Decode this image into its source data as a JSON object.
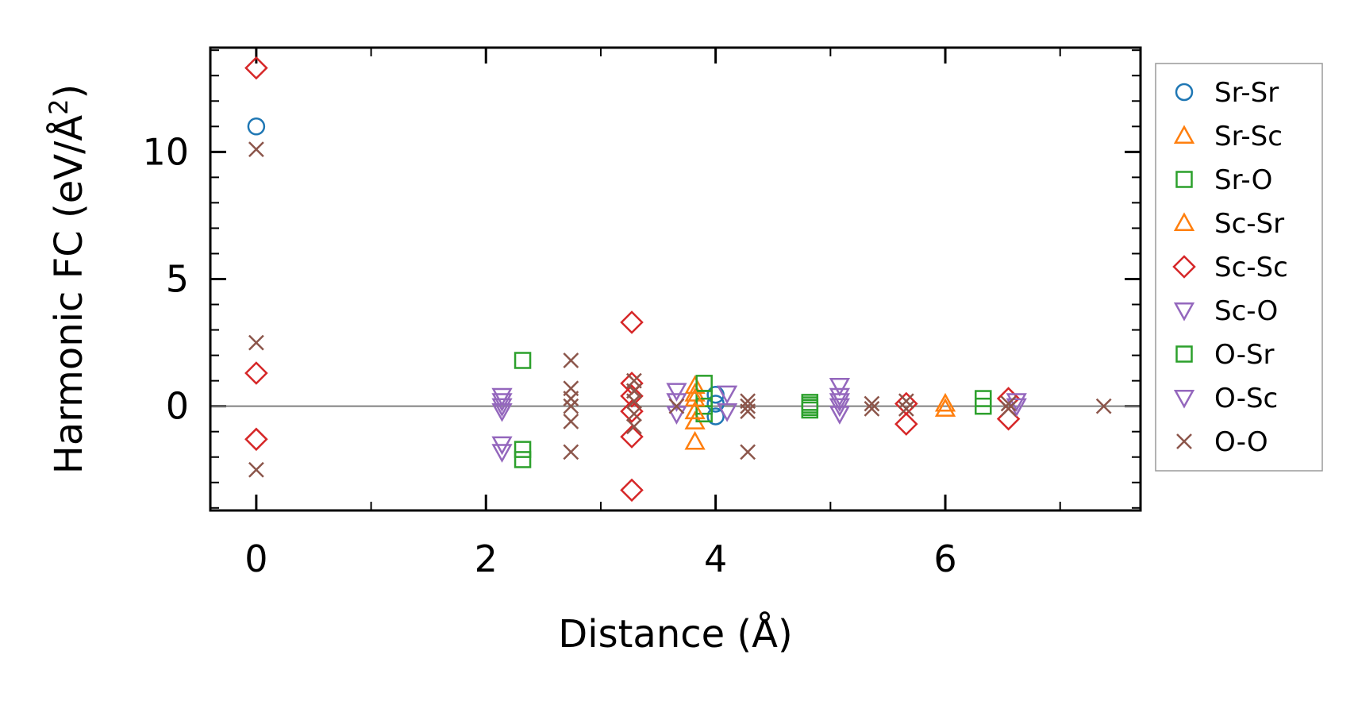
{
  "chart_data": {
    "type": "scatter",
    "title": "",
    "xlabel": "Distance (Å)",
    "ylabel_main": "Harmonic FC (eV/Å",
    "ylabel_sup": "2",
    "ylabel_close": ")",
    "xlim": [
      -0.4,
      7.7
    ],
    "ylim": [
      -4.1,
      14.1
    ],
    "xticks": [
      0,
      2,
      4,
      6
    ],
    "yticks": [
      0,
      5,
      10
    ],
    "xtick_labels": [
      "0",
      "2",
      "4",
      "6"
    ],
    "ytick_labels": [
      "0",
      "5",
      "10"
    ],
    "zero_line": true,
    "grid": false,
    "legend_position": "outside-right",
    "series": [
      {
        "name": "Sr-Sr",
        "marker": "circle",
        "color": "#1f77b4",
        "points": [
          [
            0,
            11.0
          ],
          [
            4.0,
            0.45
          ],
          [
            4.0,
            -0.4
          ],
          [
            4.0,
            0.1
          ]
        ]
      },
      {
        "name": "Sr-Sc",
        "marker": "triangle-up",
        "color": "#ff7f0e",
        "points": [
          [
            3.82,
            0.8
          ],
          [
            3.82,
            0.5
          ],
          [
            3.82,
            -0.6
          ],
          [
            3.82,
            -1.4
          ],
          [
            6.0,
            0.1
          ],
          [
            6.0,
            -0.1
          ]
        ]
      },
      {
        "name": "Sr-O",
        "marker": "square",
        "color": "#2ca02c",
        "points": [
          [
            2.32,
            1.8
          ],
          [
            2.32,
            -1.7
          ],
          [
            2.32,
            -2.1
          ],
          [
            3.9,
            0.9
          ],
          [
            3.9,
            0.3
          ],
          [
            3.9,
            0.0
          ],
          [
            3.9,
            -0.3
          ],
          [
            4.82,
            0.15
          ],
          [
            4.82,
            -0.15
          ],
          [
            6.33,
            0.3
          ],
          [
            6.33,
            0.0
          ]
        ]
      },
      {
        "name": "Sc-Sr",
        "marker": "triangle-up",
        "color": "#ff7f0e",
        "points": [
          [
            3.82,
            0.3
          ],
          [
            3.82,
            -0.2
          ]
        ]
      },
      {
        "name": "Sc-Sc",
        "marker": "diamond",
        "color": "#d62728",
        "points": [
          [
            0,
            13.3
          ],
          [
            0,
            1.3
          ],
          [
            0,
            -1.3
          ],
          [
            3.27,
            3.3
          ],
          [
            3.27,
            0.9
          ],
          [
            3.27,
            0.4
          ],
          [
            3.27,
            -0.2
          ],
          [
            3.27,
            -1.2
          ],
          [
            3.27,
            -3.3
          ],
          [
            5.66,
            0.1
          ],
          [
            5.66,
            -0.7
          ],
          [
            6.55,
            0.3
          ],
          [
            6.55,
            -0.5
          ]
        ]
      },
      {
        "name": "Sc-O",
        "marker": "triangle-down",
        "color": "#9467bd",
        "points": [
          [
            2.14,
            0.4
          ],
          [
            2.14,
            0.0
          ],
          [
            2.14,
            -0.2
          ],
          [
            2.14,
            -1.5
          ],
          [
            2.14,
            -1.8
          ],
          [
            3.66,
            0.6
          ],
          [
            3.66,
            -0.3
          ],
          [
            4.1,
            0.5
          ],
          [
            4.1,
            -0.2
          ],
          [
            5.08,
            0.8
          ],
          [
            5.08,
            0.4
          ],
          [
            5.08,
            0.0
          ],
          [
            5.08,
            -0.3
          ]
        ]
      },
      {
        "name": "O-Sr",
        "marker": "square",
        "color": "#2ca02c",
        "points": [
          [
            4.82,
            0.05
          ],
          [
            4.82,
            -0.05
          ]
        ]
      },
      {
        "name": "O-Sc",
        "marker": "triangle-down",
        "color": "#9467bd",
        "points": [
          [
            2.14,
            0.2
          ],
          [
            3.66,
            0.2
          ],
          [
            5.08,
            0.2
          ],
          [
            6.62,
            0.2
          ],
          [
            6.62,
            0.0
          ]
        ]
      },
      {
        "name": "O-O",
        "marker": "x",
        "color": "#8c564b",
        "points": [
          [
            0,
            10.1
          ],
          [
            0,
            2.5
          ],
          [
            0,
            -2.5
          ],
          [
            2.74,
            1.8
          ],
          [
            2.74,
            0.7
          ],
          [
            2.74,
            0.3
          ],
          [
            2.74,
            0.0
          ],
          [
            2.74,
            -0.6
          ],
          [
            2.74,
            -1.8
          ],
          [
            3.29,
            1.0
          ],
          [
            3.29,
            0.6
          ],
          [
            3.29,
            0.2
          ],
          [
            3.29,
            -0.3
          ],
          [
            3.29,
            -0.8
          ],
          [
            3.66,
            0.0
          ],
          [
            4.28,
            0.2
          ],
          [
            4.28,
            0.0
          ],
          [
            4.28,
            -0.2
          ],
          [
            4.28,
            -1.8
          ],
          [
            5.36,
            0.1
          ],
          [
            5.36,
            -0.1
          ],
          [
            5.66,
            0.2
          ],
          [
            5.66,
            -0.1
          ],
          [
            6.55,
            0.1
          ],
          [
            6.55,
            -0.1
          ],
          [
            7.38,
            0.0
          ]
        ]
      }
    ]
  }
}
